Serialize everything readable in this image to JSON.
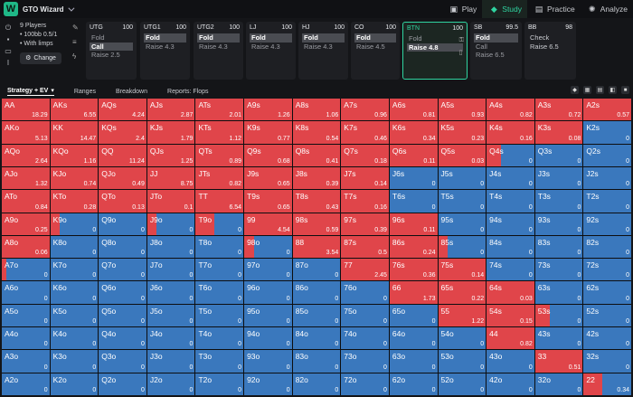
{
  "app": {
    "title": "GTO Wizard",
    "logo": "W"
  },
  "nav": [
    {
      "label": "Play",
      "icon": "play-icon",
      "active": false
    },
    {
      "label": "Study",
      "icon": "study-icon",
      "active": true
    },
    {
      "label": "Practice",
      "icon": "practice-icon",
      "active": false
    },
    {
      "label": "Analyze",
      "icon": "analyze-icon",
      "active": false
    }
  ],
  "game": {
    "players": "9 Players",
    "stack": "100bb 0.5/1",
    "limps": "With limps",
    "change_label": "Change"
  },
  "positions": [
    {
      "name": "UTG",
      "stack": "100",
      "actions": [
        "Fold",
        "Call",
        "Raise 2.5"
      ],
      "selected": 1,
      "active": false
    },
    {
      "name": "UTG1",
      "stack": "100",
      "actions": [
        "Fold",
        "Raise 4.3"
      ],
      "selected": 0,
      "active": false
    },
    {
      "name": "UTG2",
      "stack": "100",
      "actions": [
        "Fold",
        "Raise 4.3"
      ],
      "selected": 0,
      "active": false
    },
    {
      "name": "LJ",
      "stack": "100",
      "actions": [
        "Fold",
        "Raise 4.3"
      ],
      "selected": 0,
      "active": false
    },
    {
      "name": "HJ",
      "stack": "100",
      "actions": [
        "Fold",
        "Raise 4.3"
      ],
      "selected": 0,
      "active": false
    },
    {
      "name": "CO",
      "stack": "100",
      "actions": [
        "Fold",
        "Raise 4.5"
      ],
      "selected": 0,
      "active": false
    },
    {
      "name": "BTN",
      "stack": "100",
      "actions": [
        "Fold",
        "Raise 4.8"
      ],
      "selected": 1,
      "active": true
    },
    {
      "name": "SB",
      "stack": "99.5",
      "actions": [
        "Fold",
        "Call",
        "Raise 6.5"
      ],
      "selected": 0,
      "active": false
    },
    {
      "name": "BB",
      "stack": "98",
      "actions": [
        "Check",
        "Raise 6.5"
      ],
      "selected": -1,
      "active": false
    }
  ],
  "toolbar": {
    "strategy": "Strategy + EV",
    "ranges": "Ranges",
    "breakdown": "Breakdown",
    "reports": "Reports: Flops"
  },
  "colors": {
    "raise": "#e0454a",
    "fold": "#3a78bd",
    "accent": "#2fd4a0"
  },
  "grid": [
    [
      [
        "AA",
        1,
        "18.29"
      ],
      [
        "AKs",
        1,
        "6.55"
      ],
      [
        "AQs",
        1,
        "4.24"
      ],
      [
        "AJs",
        1,
        "2.87"
      ],
      [
        "ATs",
        1,
        "2.01"
      ],
      [
        "A9s",
        1,
        "1.26"
      ],
      [
        "A8s",
        1,
        "1.06"
      ],
      [
        "A7s",
        1,
        "0.96"
      ],
      [
        "A6s",
        1,
        "0.81"
      ],
      [
        "A5s",
        1,
        "0.93"
      ],
      [
        "A4s",
        1,
        "0.82"
      ],
      [
        "A3s",
        1,
        "0.72"
      ],
      [
        "A2s",
        1,
        "0.57"
      ]
    ],
    [
      [
        "AKo",
        1,
        "5.13"
      ],
      [
        "KK",
        1,
        "14.47"
      ],
      [
        "KQs",
        1,
        "2.4"
      ],
      [
        "KJs",
        1,
        "1.79"
      ],
      [
        "KTs",
        1,
        "1.12"
      ],
      [
        "K9s",
        1,
        "0.77"
      ],
      [
        "K8s",
        1,
        "0.54"
      ],
      [
        "K7s",
        1,
        "0.46"
      ],
      [
        "K6s",
        1,
        "0.34"
      ],
      [
        "K5s",
        1,
        "0.23"
      ],
      [
        "K4s",
        1,
        "0.16"
      ],
      [
        "K3s",
        1,
        "0.08"
      ],
      [
        "K2s",
        0,
        "0"
      ]
    ],
    [
      [
        "AQo",
        1,
        "2.64"
      ],
      [
        "KQo",
        1,
        "1.16"
      ],
      [
        "QQ",
        1,
        "11.24"
      ],
      [
        "QJs",
        1,
        "1.25"
      ],
      [
        "QTs",
        1,
        "0.89"
      ],
      [
        "Q9s",
        1,
        "0.68"
      ],
      [
        "Q8s",
        1,
        "0.41"
      ],
      [
        "Q7s",
        1,
        "0.18"
      ],
      [
        "Q6s",
        1,
        "0.11"
      ],
      [
        "Q5s",
        1,
        "0.03"
      ],
      [
        "Q4s",
        0.3,
        "0"
      ],
      [
        "Q3s",
        0,
        "0"
      ],
      [
        "Q2s",
        0,
        "0"
      ]
    ],
    [
      [
        "AJo",
        1,
        "1.32"
      ],
      [
        "KJo",
        1,
        "0.74"
      ],
      [
        "QJo",
        1,
        "0.49"
      ],
      [
        "JJ",
        1,
        "8.75"
      ],
      [
        "JTs",
        1,
        "0.82"
      ],
      [
        "J9s",
        1,
        "0.65"
      ],
      [
        "J8s",
        1,
        "0.39"
      ],
      [
        "J7s",
        1,
        "0.14"
      ],
      [
        "J6s",
        0,
        "0"
      ],
      [
        "J5s",
        0,
        "0"
      ],
      [
        "J4s",
        0,
        "0"
      ],
      [
        "J3s",
        0,
        "0"
      ],
      [
        "J2s",
        0,
        "0"
      ]
    ],
    [
      [
        "ATo",
        1,
        "0.84"
      ],
      [
        "KTo",
        1,
        "0.28"
      ],
      [
        "QTo",
        1,
        "0.13"
      ],
      [
        "JTo",
        1,
        "0.1"
      ],
      [
        "TT",
        1,
        "6.54"
      ],
      [
        "T9s",
        1,
        "0.65"
      ],
      [
        "T8s",
        1,
        "0.43"
      ],
      [
        "T7s",
        1,
        "0.16"
      ],
      [
        "T6s",
        0,
        "0"
      ],
      [
        "T5s",
        0,
        "0"
      ],
      [
        "T4s",
        0,
        "0"
      ],
      [
        "T3s",
        0,
        "0"
      ],
      [
        "T2s",
        0,
        "0"
      ]
    ],
    [
      [
        "A9o",
        1,
        "0.25"
      ],
      [
        "K9o",
        0.2,
        "0"
      ],
      [
        "Q9o",
        0,
        "0"
      ],
      [
        "J9o",
        0.2,
        "0"
      ],
      [
        "T9o",
        0.4,
        "0"
      ],
      [
        "99",
        1,
        "4.54"
      ],
      [
        "98s",
        1,
        "0.59"
      ],
      [
        "97s",
        1,
        "0.39"
      ],
      [
        "96s",
        1,
        "0.11"
      ],
      [
        "95s",
        0,
        "0"
      ],
      [
        "94s",
        0,
        "0"
      ],
      [
        "93s",
        0,
        "0"
      ],
      [
        "92s",
        0,
        "0"
      ]
    ],
    [
      [
        "A8o",
        1,
        "0.06"
      ],
      [
        "K8o",
        0,
        "0"
      ],
      [
        "Q8o",
        0,
        "0"
      ],
      [
        "J8o",
        0,
        "0"
      ],
      [
        "T8o",
        0,
        "0"
      ],
      [
        "98o",
        0.2,
        "0"
      ],
      [
        "88",
        1,
        "3.54"
      ],
      [
        "87s",
        1,
        "0.5"
      ],
      [
        "86s",
        1,
        "0.24"
      ],
      [
        "85s",
        0.2,
        "0"
      ],
      [
        "84s",
        0,
        "0"
      ],
      [
        "83s",
        0,
        "0"
      ],
      [
        "82s",
        0,
        "0"
      ]
    ],
    [
      [
        "A7o",
        0.1,
        "0"
      ],
      [
        "K7o",
        0,
        "0"
      ],
      [
        "Q7o",
        0,
        "0"
      ],
      [
        "J7o",
        0,
        "0"
      ],
      [
        "T7o",
        0,
        "0"
      ],
      [
        "97o",
        0,
        "0"
      ],
      [
        "87o",
        0,
        "0"
      ],
      [
        "77",
        1,
        "2.45"
      ],
      [
        "76s",
        1,
        "0.36"
      ],
      [
        "75s",
        1,
        "0.14"
      ],
      [
        "74s",
        0,
        "0"
      ],
      [
        "73s",
        0,
        "0"
      ],
      [
        "72s",
        0,
        "0"
      ]
    ],
    [
      [
        "A6o",
        0,
        "0"
      ],
      [
        "K6o",
        0,
        "0"
      ],
      [
        "Q6o",
        0,
        "0"
      ],
      [
        "J6o",
        0,
        "0"
      ],
      [
        "T6o",
        0,
        "0"
      ],
      [
        "96o",
        0,
        "0"
      ],
      [
        "86o",
        0,
        "0"
      ],
      [
        "76o",
        0,
        "0"
      ],
      [
        "66",
        1,
        "1.73"
      ],
      [
        "65s",
        1,
        "0.22"
      ],
      [
        "64s",
        1,
        "0.03"
      ],
      [
        "63s",
        0,
        "0"
      ],
      [
        "62s",
        0,
        "0"
      ]
    ],
    [
      [
        "A5o",
        0,
        "0"
      ],
      [
        "K5o",
        0,
        "0"
      ],
      [
        "Q5o",
        0,
        "0"
      ],
      [
        "J5o",
        0,
        "0"
      ],
      [
        "T5o",
        0,
        "0"
      ],
      [
        "95o",
        0,
        "0"
      ],
      [
        "85o",
        0,
        "0"
      ],
      [
        "75o",
        0,
        "0"
      ],
      [
        "65o",
        0,
        "0"
      ],
      [
        "55",
        1,
        "1.22"
      ],
      [
        "54s",
        1,
        "0.15"
      ],
      [
        "53s",
        0.3,
        "0"
      ],
      [
        "52s",
        0,
        "0"
      ]
    ],
    [
      [
        "A4o",
        0,
        "0"
      ],
      [
        "K4o",
        0,
        "0"
      ],
      [
        "Q4o",
        0,
        "0"
      ],
      [
        "J4o",
        0,
        "0"
      ],
      [
        "T4o",
        0,
        "0"
      ],
      [
        "94o",
        0,
        "0"
      ],
      [
        "84o",
        0,
        "0"
      ],
      [
        "74o",
        0,
        "0"
      ],
      [
        "64o",
        0,
        "0"
      ],
      [
        "54o",
        0,
        "0"
      ],
      [
        "44",
        1,
        "0.82"
      ],
      [
        "43s",
        0,
        "0"
      ],
      [
        "42s",
        0,
        "0"
      ]
    ],
    [
      [
        "A3o",
        0,
        "0"
      ],
      [
        "K3o",
        0,
        "0"
      ],
      [
        "Q3o",
        0,
        "0"
      ],
      [
        "J3o",
        0,
        "0"
      ],
      [
        "T3o",
        0,
        "0"
      ],
      [
        "93o",
        0,
        "0"
      ],
      [
        "83o",
        0,
        "0"
      ],
      [
        "73o",
        0,
        "0"
      ],
      [
        "63o",
        0,
        "0"
      ],
      [
        "53o",
        0,
        "0"
      ],
      [
        "43o",
        0,
        "0"
      ],
      [
        "33",
        1,
        "0.51"
      ],
      [
        "32s",
        0,
        "0"
      ]
    ],
    [
      [
        "A2o",
        0,
        "0"
      ],
      [
        "K2o",
        0,
        "0"
      ],
      [
        "Q2o",
        0,
        "0"
      ],
      [
        "J2o",
        0,
        "0"
      ],
      [
        "T2o",
        0,
        "0"
      ],
      [
        "92o",
        0,
        "0"
      ],
      [
        "82o",
        0,
        "0"
      ],
      [
        "72o",
        0,
        "0"
      ],
      [
        "62o",
        0,
        "0"
      ],
      [
        "52o",
        0,
        "0"
      ],
      [
        "42o",
        0,
        "0"
      ],
      [
        "32o",
        0,
        "0"
      ],
      [
        "22",
        0.4,
        "0.34"
      ]
    ]
  ]
}
